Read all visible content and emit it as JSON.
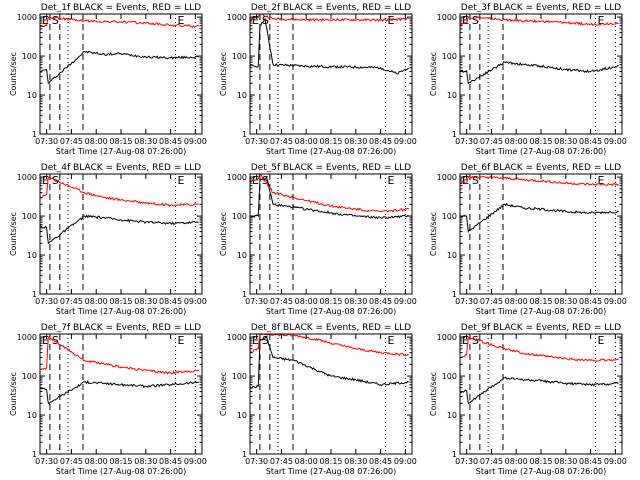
{
  "figure": {
    "x_axis_label": "Start Time (27-Aug-08 07:26:00)",
    "y_axis_label": "Counts/sec",
    "x_tick_labels": [
      "07:30",
      "07:45",
      "08:00",
      "08:15",
      "08:30",
      "08:45",
      "09:00"
    ],
    "y_tick_labels": [
      "1",
      "10",
      "100",
      "1000"
    ],
    "series_colors": {
      "Events": "#000000",
      "LLD": "#ff0000"
    },
    "marker_labels": [
      "E",
      "S",
      "E"
    ]
  },
  "chart_data": [
    {
      "type": "line",
      "title": "Det_1f BLACK = Events, RED = LLD",
      "xlim": [
        "07:26",
        "09:04"
      ],
      "ylim": [
        1,
        1200
      ],
      "yscale": "log",
      "dashed_lines": [
        "07:32",
        "07:38",
        "07:52"
      ],
      "dotted_lines": [
        "07:43",
        "08:48",
        "09:00"
      ],
      "series": [
        {
          "name": "Events",
          "color": "#000000",
          "points": [
            [
              "07:26",
              40
            ],
            [
              "07:30",
              45
            ],
            [
              "07:31",
              20
            ],
            [
              "07:53",
              130
            ],
            [
              "08:05",
              110
            ],
            [
              "08:15",
              115
            ],
            [
              "08:30",
              95
            ],
            [
              "08:45",
              90
            ],
            [
              "09:02",
              95
            ]
          ]
        },
        {
          "name": "LLD",
          "color": "#ff0000",
          "points": [
            [
              "07:26",
              550
            ],
            [
              "07:30",
              600
            ],
            [
              "07:31",
              1000
            ],
            [
              "07:53",
              800
            ],
            [
              "08:00",
              780
            ],
            [
              "08:15",
              750
            ],
            [
              "08:30",
              700
            ],
            [
              "08:45",
              620
            ],
            [
              "09:02",
              580
            ]
          ]
        }
      ]
    },
    {
      "type": "line",
      "title": "Det_2f BLACK = Events, RED = LLD",
      "xlim": [
        "07:26",
        "09:04"
      ],
      "ylim": [
        1,
        1200
      ],
      "yscale": "log",
      "dashed_lines": [
        "07:32",
        "07:38",
        "07:52"
      ],
      "dotted_lines": [
        "07:43",
        "08:48",
        "09:00"
      ],
      "series": [
        {
          "name": "Events",
          "color": "#000000",
          "points": [
            [
              "07:26",
              55
            ],
            [
              "07:31",
              55
            ],
            [
              "07:32",
              600
            ],
            [
              "07:35",
              900
            ],
            [
              "07:40",
              60
            ],
            [
              "08:00",
              55
            ],
            [
              "08:30",
              52
            ],
            [
              "08:45",
              50
            ],
            [
              "08:55",
              35
            ],
            [
              "09:02",
              50
            ]
          ]
        },
        {
          "name": "LLD",
          "color": "#ff0000",
          "points": [
            [
              "07:26",
              900
            ],
            [
              "07:31",
              1000
            ],
            [
              "07:32",
              1200
            ],
            [
              "07:40",
              900
            ],
            [
              "08:00",
              850
            ],
            [
              "08:30",
              850
            ],
            [
              "08:45",
              830
            ],
            [
              "09:02",
              900
            ]
          ]
        }
      ]
    },
    {
      "type": "line",
      "title": "Det_3f BLACK = Events, RED = LLD",
      "xlim": [
        "07:26",
        "09:04"
      ],
      "ylim": [
        1,
        1200
      ],
      "yscale": "log",
      "dashed_lines": [
        "07:32",
        "07:38",
        "07:52"
      ],
      "dotted_lines": [
        "07:43",
        "08:48",
        "09:00"
      ],
      "series": [
        {
          "name": "Events",
          "color": "#000000",
          "points": [
            [
              "07:26",
              40
            ],
            [
              "07:30",
              42
            ],
            [
              "07:31",
              20
            ],
            [
              "07:53",
              70
            ],
            [
              "08:05",
              60
            ],
            [
              "08:15",
              55
            ],
            [
              "08:30",
              45
            ],
            [
              "08:45",
              40
            ],
            [
              "09:02",
              55
            ]
          ]
        },
        {
          "name": "LLD",
          "color": "#ff0000",
          "points": [
            [
              "07:26",
              650
            ],
            [
              "07:30",
              700
            ],
            [
              "07:31",
              1000
            ],
            [
              "07:53",
              850
            ],
            [
              "08:05",
              800
            ],
            [
              "08:15",
              780
            ],
            [
              "08:30",
              720
            ],
            [
              "08:45",
              650
            ],
            [
              "09:02",
              700
            ]
          ]
        }
      ]
    },
    {
      "type": "line",
      "title": "Det_4f BLACK = Events, RED = LLD",
      "xlim": [
        "07:26",
        "09:04"
      ],
      "ylim": [
        1,
        1200
      ],
      "yscale": "log",
      "dashed_lines": [
        "07:32",
        "07:38",
        "07:52"
      ],
      "dotted_lines": [
        "07:43",
        "08:48",
        "09:00"
      ],
      "series": [
        {
          "name": "Events",
          "color": "#000000",
          "points": [
            [
              "07:26",
              55
            ],
            [
              "07:30",
              50
            ],
            [
              "07:31",
              20
            ],
            [
              "07:53",
              100
            ],
            [
              "08:05",
              90
            ],
            [
              "08:15",
              80
            ],
            [
              "08:30",
              70
            ],
            [
              "08:45",
              65
            ],
            [
              "09:02",
              70
            ]
          ]
        },
        {
          "name": "LLD",
          "color": "#ff0000",
          "points": [
            [
              "07:26",
              300
            ],
            [
              "07:30",
              350
            ],
            [
              "07:31",
              1000
            ],
            [
              "07:53",
              400
            ],
            [
              "08:05",
              300
            ],
            [
              "08:15",
              260
            ],
            [
              "08:30",
              220
            ],
            [
              "08:45",
              190
            ],
            [
              "09:02",
              200
            ]
          ]
        }
      ]
    },
    {
      "type": "line",
      "title": "Det_5f BLACK = Events, RED = LLD",
      "xlim": [
        "07:26",
        "09:04"
      ],
      "ylim": [
        1,
        1200
      ],
      "yscale": "log",
      "dashed_lines": [
        "07:32",
        "07:38",
        "07:52"
      ],
      "dotted_lines": [
        "07:43",
        "08:48",
        "09:00"
      ],
      "series": [
        {
          "name": "Events",
          "color": "#000000",
          "points": [
            [
              "07:26",
              100
            ],
            [
              "07:31",
              100
            ],
            [
              "07:32",
              800
            ],
            [
              "07:36",
              1000
            ],
            [
              "07:40",
              200
            ],
            [
              "08:00",
              150
            ],
            [
              "08:15",
              120
            ],
            [
              "08:30",
              100
            ],
            [
              "08:45",
              90
            ],
            [
              "09:02",
              100
            ]
          ]
        },
        {
          "name": "LLD",
          "color": "#ff0000",
          "points": [
            [
              "07:26",
              800
            ],
            [
              "07:31",
              900
            ],
            [
              "07:32",
              1200
            ],
            [
              "07:40",
              400
            ],
            [
              "08:00",
              250
            ],
            [
              "08:15",
              180
            ],
            [
              "08:30",
              150
            ],
            [
              "08:45",
              130
            ],
            [
              "09:02",
              150
            ]
          ]
        }
      ]
    },
    {
      "type": "line",
      "title": "Det_6f BLACK = Events, RED = LLD",
      "xlim": [
        "07:26",
        "09:04"
      ],
      "ylim": [
        1,
        1200
      ],
      "yscale": "log",
      "dashed_lines": [
        "07:32",
        "07:38",
        "07:52"
      ],
      "dotted_lines": [
        "07:43",
        "08:48",
        "09:00"
      ],
      "series": [
        {
          "name": "Events",
          "color": "#000000",
          "points": [
            [
              "07:26",
              100
            ],
            [
              "07:30",
              100
            ],
            [
              "07:31",
              40
            ],
            [
              "07:53",
              200
            ],
            [
              "08:05",
              160
            ],
            [
              "08:15",
              150
            ],
            [
              "08:30",
              130
            ],
            [
              "08:45",
              120
            ],
            [
              "09:02",
              130
            ]
          ]
        },
        {
          "name": "LLD",
          "color": "#ff0000",
          "points": [
            [
              "07:26",
              700
            ],
            [
              "07:30",
              700
            ],
            [
              "07:31",
              1000
            ],
            [
              "07:53",
              950
            ],
            [
              "08:05",
              850
            ],
            [
              "08:15",
              800
            ],
            [
              "08:30",
              700
            ],
            [
              "08:45",
              650
            ],
            [
              "09:02",
              650
            ]
          ]
        }
      ]
    },
    {
      "type": "line",
      "title": "Det_7f BLACK = Events, RED = LLD",
      "xlim": [
        "07:26",
        "09:04"
      ],
      "ylim": [
        1,
        1200
      ],
      "yscale": "log",
      "dashed_lines": [
        "07:32",
        "07:38",
        "07:52"
      ],
      "dotted_lines": [
        "07:43",
        "08:48",
        "09:00"
      ],
      "series": [
        {
          "name": "Events",
          "color": "#000000",
          "points": [
            [
              "07:26",
              50
            ],
            [
              "07:30",
              45
            ],
            [
              "07:31",
              20
            ],
            [
              "07:53",
              70
            ],
            [
              "08:05",
              65
            ],
            [
              "08:15",
              60
            ],
            [
              "08:30",
              55
            ],
            [
              "08:45",
              60
            ],
            [
              "09:02",
              70
            ]
          ]
        },
        {
          "name": "LLD",
          "color": "#ff0000",
          "points": [
            [
              "07:26",
              150
            ],
            [
              "07:30",
              160
            ],
            [
              "07:31",
              1000
            ],
            [
              "07:53",
              250
            ],
            [
              "08:05",
              200
            ],
            [
              "08:15",
              170
            ],
            [
              "08:30",
              140
            ],
            [
              "08:45",
              120
            ],
            [
              "09:02",
              140
            ]
          ]
        }
      ]
    },
    {
      "type": "line",
      "title": "Det_8f BLACK = Events, RED = LLD",
      "xlim": [
        "07:26",
        "09:04"
      ],
      "ylim": [
        1,
        1200
      ],
      "yscale": "log",
      "dashed_lines": [
        "07:32",
        "07:38",
        "07:52"
      ],
      "dotted_lines": [
        "07:43",
        "08:48",
        "09:00"
      ],
      "series": [
        {
          "name": "Events",
          "color": "#000000",
          "points": [
            [
              "07:26",
              50
            ],
            [
              "07:31",
              55
            ],
            [
              "07:32",
              800
            ],
            [
              "07:36",
              1000
            ],
            [
              "07:40",
              300
            ],
            [
              "07:53",
              250
            ],
            [
              "08:05",
              150
            ],
            [
              "08:15",
              100
            ],
            [
              "08:30",
              80
            ],
            [
              "08:45",
              60
            ],
            [
              "09:02",
              70
            ]
          ]
        },
        {
          "name": "LLD",
          "color": "#ff0000",
          "points": [
            [
              "07:26",
              400
            ],
            [
              "07:31",
              500
            ],
            [
              "07:32",
              1200
            ],
            [
              "07:53",
              1100
            ],
            [
              "08:05",
              900
            ],
            [
              "08:15",
              700
            ],
            [
              "08:30",
              500
            ],
            [
              "08:45",
              400
            ],
            [
              "09:02",
              350
            ]
          ]
        }
      ]
    },
    {
      "type": "line",
      "title": "Det_9f BLACK = Events, RED = LLD",
      "xlim": [
        "07:26",
        "09:04"
      ],
      "ylim": [
        1,
        1200
      ],
      "yscale": "log",
      "dashed_lines": [
        "07:32",
        "07:38",
        "07:52"
      ],
      "dotted_lines": [
        "07:43",
        "08:48",
        "09:00"
      ],
      "series": [
        {
          "name": "Events",
          "color": "#000000",
          "points": [
            [
              "07:26",
              40
            ],
            [
              "07:30",
              42
            ],
            [
              "07:31",
              20
            ],
            [
              "07:53",
              90
            ],
            [
              "08:05",
              80
            ],
            [
              "08:15",
              75
            ],
            [
              "08:30",
              65
            ],
            [
              "08:45",
              60
            ],
            [
              "09:02",
              65
            ]
          ]
        },
        {
          "name": "LLD",
          "color": "#ff0000",
          "points": [
            [
              "07:26",
              300
            ],
            [
              "07:30",
              350
            ],
            [
              "07:31",
              1000
            ],
            [
              "07:53",
              500
            ],
            [
              "08:05",
              380
            ],
            [
              "08:15",
              330
            ],
            [
              "08:30",
              280
            ],
            [
              "08:45",
              250
            ],
            [
              "09:02",
              260
            ]
          ]
        }
      ]
    }
  ]
}
